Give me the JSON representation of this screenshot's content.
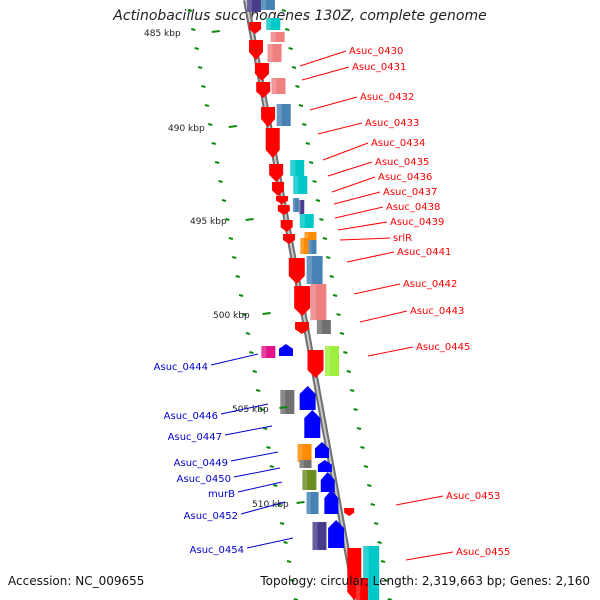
{
  "title": "Actinobacillus succinogenes 130Z, complete genome",
  "footer": {
    "accession": "Accession: NC_009655",
    "stats": "Topology: circular; Length: 2,319,663 bp; Genes: 2,160"
  },
  "colors": {
    "red": "#ff0000",
    "pink": "#f08080",
    "teal": "#00c8c8",
    "steelblue": "#4682b4",
    "navy": "#483d8b",
    "orange": "#ff8c00",
    "gray": "#707070",
    "olive": "#6b8e23",
    "lime": "#9cef3c",
    "magenta": "#e0158c",
    "blue": "#0000ff",
    "label_red": "#ff0000",
    "label_blue": "#0000cc",
    "backbone": "#808080",
    "scale_green": "#0a8a0a"
  },
  "scale_labels": [
    "485 kbp",
    "490 kbp",
    "495 kbp",
    "500 kbp",
    "505 kbp",
    "510 kbp"
  ],
  "gene_labels_right": [
    "Asuc_0430",
    "Asuc_0431",
    "Asuc_0432",
    "Asuc_0433",
    "Asuc_0434",
    "Asuc_0435",
    "Asuc_0436",
    "Asuc_0437",
    "Asuc_0438",
    "Asuc_0439",
    "srlR",
    "Asuc_0441",
    "Asuc_0442",
    "Asuc_0443",
    "Asuc_0445",
    "Asuc_0453",
    "Asuc_0455"
  ],
  "gene_labels_left": [
    "Asuc_0444",
    "Asuc_0446",
    "Asuc_0447",
    "Asuc_0449",
    "Asuc_0450",
    "murB",
    "Asuc_0452",
    "Asuc_0454"
  ]
}
